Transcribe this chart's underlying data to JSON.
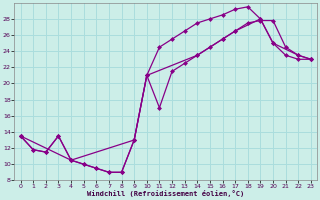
{
  "xlabel": "Windchill (Refroidissement éolien,°C)",
  "bg_color": "#cceee8",
  "grid_color": "#aadddd",
  "line_color": "#880088",
  "xlim": [
    -0.5,
    23.5
  ],
  "ylim": [
    8,
    30
  ],
  "xticks": [
    0,
    1,
    2,
    3,
    4,
    5,
    6,
    7,
    8,
    9,
    10,
    11,
    12,
    13,
    14,
    15,
    16,
    17,
    18,
    19,
    20,
    21,
    22,
    23
  ],
  "yticks": [
    8,
    10,
    12,
    14,
    16,
    18,
    20,
    22,
    24,
    26,
    28
  ],
  "line1_x": [
    0,
    1,
    2,
    3,
    4,
    5,
    6,
    7,
    8,
    9,
    10,
    11,
    12,
    13,
    14,
    15,
    16,
    17,
    18,
    19,
    20,
    21,
    22,
    23
  ],
  "line1_y": [
    13.5,
    11.8,
    11.5,
    13.5,
    10.5,
    10.0,
    9.5,
    9.0,
    9.0,
    13.0,
    21.0,
    24.5,
    25.5,
    26.5,
    27.5,
    28.0,
    28.5,
    29.2,
    29.5,
    28.0,
    25.0,
    23.5,
    23.0,
    23.0
  ],
  "line2_x": [
    0,
    1,
    2,
    3,
    4,
    5,
    6,
    7,
    8,
    9,
    10,
    11,
    12,
    13,
    14,
    15,
    16,
    17,
    18,
    19,
    20,
    21,
    22,
    23
  ],
  "line2_y": [
    13.5,
    11.8,
    11.5,
    13.5,
    10.5,
    10.0,
    9.5,
    9.0,
    9.0,
    13.0,
    21.0,
    17.0,
    21.5,
    22.5,
    23.5,
    24.5,
    25.5,
    26.5,
    27.5,
    27.8,
    27.8,
    24.5,
    23.5,
    23.0
  ],
  "line3_x": [
    0,
    4,
    9,
    10,
    14,
    16,
    17,
    19,
    20,
    22,
    23
  ],
  "line3_y": [
    13.5,
    10.5,
    13.0,
    21.0,
    23.5,
    25.5,
    26.5,
    28.0,
    25.0,
    23.5,
    23.0
  ],
  "marker": "D",
  "markersize": 2.5,
  "linewidth": 0.9
}
